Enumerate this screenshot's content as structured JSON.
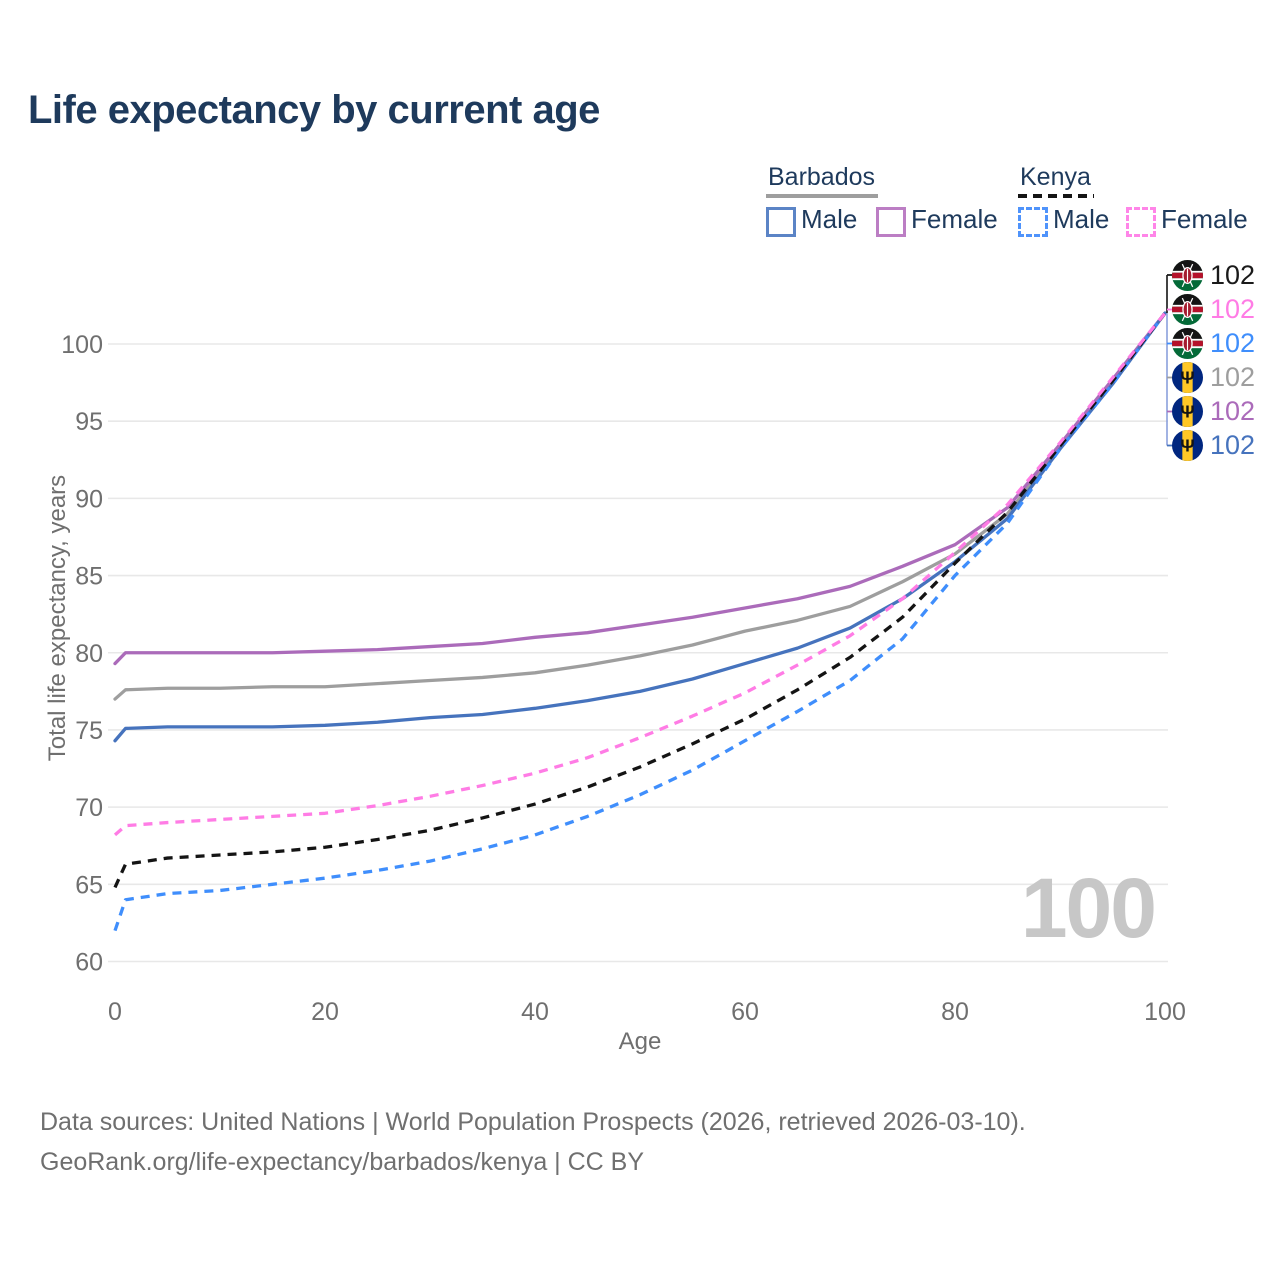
{
  "title": "Life expectancy by current age",
  "legend": {
    "groups": [
      {
        "label": "Barbados",
        "line_style": "solid",
        "underline_color": "#9e9e9e",
        "items": [
          {
            "label": "Male",
            "color": "#5b84c6"
          },
          {
            "label": "Female",
            "color": "#bc7ec4"
          }
        ]
      },
      {
        "label": "Kenya",
        "line_style": "dashed",
        "underline_color": "#141414",
        "items": [
          {
            "label": "Male",
            "color": "#4f93fb"
          },
          {
            "label": "Female",
            "color": "#ff85e8"
          }
        ]
      }
    ]
  },
  "axes": {
    "xlabel": "Age",
    "ylabel": "Total life expectancy, years"
  },
  "end_labels": [
    {
      "flag": "kenya",
      "series": "Kenya Total",
      "value": "102",
      "color": "#1a1a1a"
    },
    {
      "flag": "kenya",
      "series": "Kenya Female",
      "value": "102",
      "color": "#ff7ce5"
    },
    {
      "flag": "kenya",
      "series": "Kenya Male",
      "value": "102",
      "color": "#3f8efc"
    },
    {
      "flag": "barbados",
      "series": "Barbados Total",
      "value": "102",
      "color": "#9e9e9e"
    },
    {
      "flag": "barbados",
      "series": "Barbados Female",
      "value": "102",
      "color": "#ab6bba"
    },
    {
      "flag": "barbados",
      "series": "Barbados Male",
      "value": "102",
      "color": "#4673bd"
    }
  ],
  "watermark": "100",
  "footer": {
    "line1": "Data sources: United Nations | World Population Prospects (2026, retrieved 2026-03-10).",
    "line2": "GeoRank.org/life-expectancy/barbados/kenya | CC BY"
  },
  "chart_data": {
    "type": "line",
    "title": "Life expectancy by current age",
    "xlabel": "Age",
    "ylabel": "Total life expectancy, years",
    "xlim": [
      0,
      100
    ],
    "ylim": [
      60,
      103
    ],
    "grid": "horizontal",
    "legend_position": "top-right",
    "x_ticks": [
      0,
      20,
      40,
      60,
      80,
      100
    ],
    "y_ticks": [
      60,
      65,
      70,
      75,
      80,
      85,
      90,
      95,
      100
    ],
    "x": [
      0,
      1,
      5,
      10,
      15,
      20,
      25,
      30,
      35,
      40,
      45,
      50,
      55,
      60,
      65,
      70,
      75,
      80,
      85,
      90,
      95,
      100
    ],
    "series": [
      {
        "name": "Barbados Female",
        "country": "Barbados",
        "sex": "Female",
        "color": "#ab6bba",
        "dash": false,
        "values": [
          79.3,
          80.0,
          80.0,
          80.0,
          80.0,
          80.1,
          80.2,
          80.4,
          80.6,
          81.0,
          81.3,
          81.8,
          82.3,
          82.9,
          83.5,
          84.3,
          85.6,
          87.0,
          89.4,
          93.5,
          97.7,
          102
        ]
      },
      {
        "name": "Barbados Total",
        "country": "Barbados",
        "sex": "Total",
        "color": "#9e9e9e",
        "dash": false,
        "values": [
          77.0,
          77.6,
          77.7,
          77.7,
          77.8,
          77.8,
          78.0,
          78.2,
          78.4,
          78.7,
          79.2,
          79.8,
          80.5,
          81.4,
          82.1,
          83.0,
          84.6,
          86.4,
          89.0,
          93.3,
          97.5,
          102
        ]
      },
      {
        "name": "Barbados Male",
        "country": "Barbados",
        "sex": "Male",
        "color": "#4673bd",
        "dash": false,
        "values": [
          74.3,
          75.1,
          75.2,
          75.2,
          75.2,
          75.3,
          75.5,
          75.8,
          76.0,
          76.4,
          76.9,
          77.5,
          78.3,
          79.3,
          80.3,
          81.6,
          83.5,
          85.9,
          88.7,
          93.2,
          97.4,
          102
        ]
      },
      {
        "name": "Kenya Female",
        "country": "Kenya",
        "sex": "Female",
        "color": "#ff7ce5",
        "dash": true,
        "values": [
          68.2,
          68.8,
          69.0,
          69.2,
          69.4,
          69.6,
          70.1,
          70.7,
          71.4,
          72.2,
          73.2,
          74.5,
          75.9,
          77.4,
          79.2,
          81.1,
          83.5,
          86.5,
          89.6,
          93.6,
          97.8,
          102
        ]
      },
      {
        "name": "Kenya Total",
        "country": "Kenya",
        "sex": "Total",
        "color": "#141414",
        "dash": true,
        "values": [
          64.8,
          66.3,
          66.7,
          66.9,
          67.1,
          67.4,
          67.9,
          68.5,
          69.3,
          70.2,
          71.3,
          72.6,
          74.1,
          75.7,
          77.6,
          79.7,
          82.3,
          85.8,
          89.1,
          93.4,
          97.6,
          102
        ]
      },
      {
        "name": "Kenya Male",
        "country": "Kenya",
        "sex": "Male",
        "color": "#3f8efc",
        "dash": true,
        "values": [
          62.0,
          64.0,
          64.4,
          64.6,
          65.0,
          65.4,
          65.9,
          66.5,
          67.3,
          68.2,
          69.4,
          70.8,
          72.4,
          74.3,
          76.2,
          78.2,
          80.9,
          85.0,
          88.4,
          93.2,
          97.4,
          102
        ]
      }
    ]
  }
}
